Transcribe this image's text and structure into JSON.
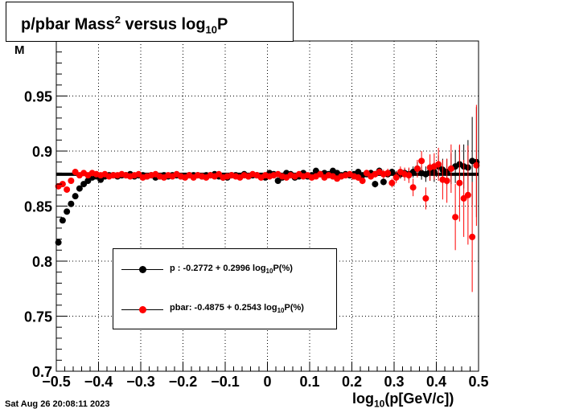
{
  "title": {
    "base": "p/pbar Mass",
    "sup": "2",
    "mid": " versus log",
    "sub": "10",
    "end": "P"
  },
  "timestamp": "Sat Aug 26 20:08:11 2023",
  "xlabel": {
    "pre": "log",
    "sub": "10",
    "post": "(p[GeV/c])"
  },
  "ylabel_fragment": "M",
  "legend": [
    {
      "marker": "p",
      "pre": "p   : -0.2772 + 0.2996 log",
      "sub": "10",
      "post": "P(%)",
      "color": "#000000"
    },
    {
      "marker": "pbar",
      "pre": "pbar: -0.4875 + 0.2543 log",
      "sub": "10",
      "post": "P(%)",
      "color": "#ff0000"
    }
  ],
  "chart_data": {
    "type": "scatter",
    "title": "p/pbar Mass^2 versus log10P",
    "xlabel": "log10(p[GeV/c])",
    "ylabel": "M",
    "xlim": [
      -0.5,
      0.5
    ],
    "ylim": [
      0.7,
      1.0
    ],
    "xticks": [
      -0.5,
      -0.4,
      -0.3,
      -0.2,
      -0.1,
      0,
      0.1,
      0.2,
      0.3,
      0.4,
      0.5
    ],
    "xtick_labels": [
      "−0.5",
      "−0.4",
      "−0.3",
      "−0.2",
      "−0.1",
      "0",
      "0.1",
      "0.2",
      "0.3",
      "0.4",
      "0.5"
    ],
    "yticks": [
      0.7,
      0.75,
      0.8,
      0.85,
      0.9,
      0.95
    ],
    "ytick_labels": [
      "0.7",
      "0.75",
      "0.8",
      "0.85",
      "0.9",
      "0.95"
    ],
    "grid": true,
    "reference_line": 0.8789,
    "series": [
      {
        "name": "p",
        "color": "#000000",
        "x": [
          -0.495,
          -0.485,
          -0.475,
          -0.465,
          -0.455,
          -0.445,
          -0.435,
          -0.425,
          -0.415,
          -0.405,
          -0.395,
          -0.385,
          -0.375,
          -0.365,
          -0.355,
          -0.345,
          -0.335,
          -0.325,
          -0.315,
          -0.305,
          -0.295,
          -0.285,
          -0.275,
          -0.265,
          -0.255,
          -0.245,
          -0.235,
          -0.225,
          -0.215,
          -0.205,
          -0.195,
          -0.185,
          -0.175,
          -0.165,
          -0.155,
          -0.145,
          -0.135,
          -0.125,
          -0.115,
          -0.105,
          -0.095,
          -0.085,
          -0.075,
          -0.065,
          -0.055,
          -0.045,
          -0.035,
          -0.025,
          -0.015,
          -0.005,
          0.005,
          0.015,
          0.025,
          0.035,
          0.045,
          0.055,
          0.065,
          0.075,
          0.085,
          0.095,
          0.105,
          0.115,
          0.125,
          0.135,
          0.145,
          0.155,
          0.165,
          0.175,
          0.185,
          0.195,
          0.205,
          0.215,
          0.225,
          0.235,
          0.245,
          0.255,
          0.265,
          0.275,
          0.285,
          0.295,
          0.305,
          0.315,
          0.325,
          0.335,
          0.345,
          0.355,
          0.365,
          0.375,
          0.385,
          0.395,
          0.405,
          0.415,
          0.425,
          0.435,
          0.445,
          0.455,
          0.465,
          0.475,
          0.485,
          0.495
        ],
        "y": [
          0.817,
          0.837,
          0.845,
          0.852,
          0.859,
          0.866,
          0.87,
          0.873,
          0.876,
          0.877,
          0.874,
          0.877,
          0.878,
          0.878,
          0.877,
          0.878,
          0.878,
          0.879,
          0.877,
          0.878,
          0.878,
          0.877,
          0.878,
          0.876,
          0.877,
          0.878,
          0.877,
          0.878,
          0.878,
          0.877,
          0.877,
          0.878,
          0.878,
          0.878,
          0.877,
          0.878,
          0.878,
          0.879,
          0.877,
          0.876,
          0.876,
          0.878,
          0.878,
          0.877,
          0.879,
          0.877,
          0.878,
          0.878,
          0.877,
          0.876,
          0.88,
          0.879,
          0.873,
          0.876,
          0.88,
          0.879,
          0.876,
          0.877,
          0.88,
          0.877,
          0.878,
          0.882,
          0.879,
          0.88,
          0.879,
          0.882,
          0.88,
          0.878,
          0.879,
          0.878,
          0.879,
          0.881,
          0.878,
          0.879,
          0.88,
          0.87,
          0.882,
          0.872,
          0.879,
          0.881,
          0.878,
          0.879,
          0.88,
          0.879,
          0.881,
          0.884,
          0.88,
          0.879,
          0.881,
          0.881,
          0.886,
          0.883,
          0.881,
          0.884,
          0.886,
          0.888,
          0.886,
          0.885,
          0.891,
          0.89
        ],
        "yerr": [
          0.002,
          0.002,
          0.002,
          0.002,
          0.002,
          0.002,
          0.002,
          0.002,
          0.002,
          0.002,
          0.002,
          0.002,
          0.002,
          0.002,
          0.002,
          0.002,
          0.002,
          0.002,
          0.002,
          0.002,
          0.002,
          0.002,
          0.002,
          0.002,
          0.002,
          0.002,
          0.002,
          0.002,
          0.002,
          0.002,
          0.002,
          0.002,
          0.002,
          0.002,
          0.002,
          0.002,
          0.002,
          0.002,
          0.002,
          0.002,
          0.002,
          0.002,
          0.002,
          0.002,
          0.002,
          0.002,
          0.002,
          0.002,
          0.002,
          0.002,
          0.002,
          0.002,
          0.002,
          0.002,
          0.002,
          0.002,
          0.002,
          0.002,
          0.002,
          0.002,
          0.002,
          0.002,
          0.002,
          0.002,
          0.002,
          0.002,
          0.002,
          0.002,
          0.002,
          0.002,
          0.002,
          0.002,
          0.002,
          0.002,
          0.003,
          0.003,
          0.003,
          0.003,
          0.003,
          0.003,
          0.004,
          0.004,
          0.004,
          0.005,
          0.005,
          0.006,
          0.006,
          0.007,
          0.008,
          0.009,
          0.01,
          0.01,
          0.012,
          0.014,
          0.015,
          0.017,
          0.02,
          0.025,
          0.04,
          0.05
        ]
      },
      {
        "name": "pbar",
        "color": "#ff0000",
        "x": [
          -0.495,
          -0.485,
          -0.475,
          -0.465,
          -0.455,
          -0.445,
          -0.435,
          -0.425,
          -0.415,
          -0.405,
          -0.395,
          -0.385,
          -0.375,
          -0.365,
          -0.355,
          -0.345,
          -0.335,
          -0.325,
          -0.315,
          -0.305,
          -0.295,
          -0.285,
          -0.275,
          -0.265,
          -0.255,
          -0.245,
          -0.235,
          -0.225,
          -0.215,
          -0.205,
          -0.195,
          -0.185,
          -0.175,
          -0.165,
          -0.155,
          -0.145,
          -0.135,
          -0.125,
          -0.115,
          -0.105,
          -0.095,
          -0.085,
          -0.075,
          -0.065,
          -0.055,
          -0.045,
          -0.035,
          -0.025,
          -0.015,
          -0.005,
          0.005,
          0.015,
          0.025,
          0.035,
          0.045,
          0.055,
          0.065,
          0.075,
          0.085,
          0.095,
          0.105,
          0.115,
          0.125,
          0.135,
          0.145,
          0.155,
          0.165,
          0.175,
          0.185,
          0.195,
          0.205,
          0.215,
          0.225,
          0.235,
          0.245,
          0.255,
          0.265,
          0.275,
          0.285,
          0.295,
          0.305,
          0.315,
          0.325,
          0.335,
          0.345,
          0.355,
          0.365,
          0.375,
          0.385,
          0.395,
          0.405,
          0.415,
          0.425,
          0.435,
          0.445,
          0.455,
          0.465,
          0.475,
          0.485,
          0.495
        ],
        "y": [
          0.868,
          0.87,
          0.865,
          0.873,
          0.881,
          0.878,
          0.88,
          0.878,
          0.88,
          0.879,
          0.878,
          0.879,
          0.877,
          0.878,
          0.878,
          0.879,
          0.878,
          0.877,
          0.878,
          0.879,
          0.876,
          0.877,
          0.878,
          0.879,
          0.877,
          0.876,
          0.878,
          0.877,
          0.879,
          0.877,
          0.876,
          0.878,
          0.876,
          0.878,
          0.877,
          0.876,
          0.878,
          0.877,
          0.879,
          0.876,
          0.877,
          0.878,
          0.877,
          0.876,
          0.878,
          0.877,
          0.879,
          0.878,
          0.876,
          0.878,
          0.877,
          0.878,
          0.879,
          0.877,
          0.876,
          0.878,
          0.877,
          0.879,
          0.877,
          0.878,
          0.876,
          0.877,
          0.879,
          0.876,
          0.878,
          0.877,
          0.875,
          0.877,
          0.878,
          0.879,
          0.877,
          0.876,
          0.873,
          0.88,
          0.877,
          0.879,
          0.881,
          0.879,
          0.88,
          0.871,
          0.876,
          0.881,
          0.879,
          0.878,
          0.867,
          0.884,
          0.891,
          0.857,
          0.885,
          0.886,
          0.888,
          0.874,
          0.873,
          0.884,
          0.84,
          0.871,
          0.857,
          0.86,
          0.822,
          0.887
        ],
        "yerr": [
          0.002,
          0.002,
          0.002,
          0.002,
          0.002,
          0.002,
          0.002,
          0.002,
          0.002,
          0.002,
          0.002,
          0.002,
          0.002,
          0.002,
          0.002,
          0.002,
          0.002,
          0.002,
          0.002,
          0.002,
          0.002,
          0.002,
          0.002,
          0.002,
          0.002,
          0.002,
          0.002,
          0.002,
          0.002,
          0.002,
          0.002,
          0.002,
          0.002,
          0.002,
          0.002,
          0.002,
          0.002,
          0.002,
          0.002,
          0.002,
          0.002,
          0.002,
          0.002,
          0.002,
          0.002,
          0.002,
          0.002,
          0.002,
          0.002,
          0.002,
          0.002,
          0.002,
          0.002,
          0.002,
          0.002,
          0.002,
          0.002,
          0.002,
          0.002,
          0.002,
          0.002,
          0.002,
          0.002,
          0.002,
          0.002,
          0.002,
          0.002,
          0.002,
          0.002,
          0.002,
          0.002,
          0.003,
          0.003,
          0.003,
          0.003,
          0.003,
          0.003,
          0.004,
          0.004,
          0.004,
          0.005,
          0.005,
          0.006,
          0.007,
          0.008,
          0.008,
          0.009,
          0.01,
          0.012,
          0.012,
          0.015,
          0.018,
          0.02,
          0.022,
          0.03,
          0.035,
          0.035,
          0.045,
          0.05,
          0.055
        ]
      }
    ]
  }
}
